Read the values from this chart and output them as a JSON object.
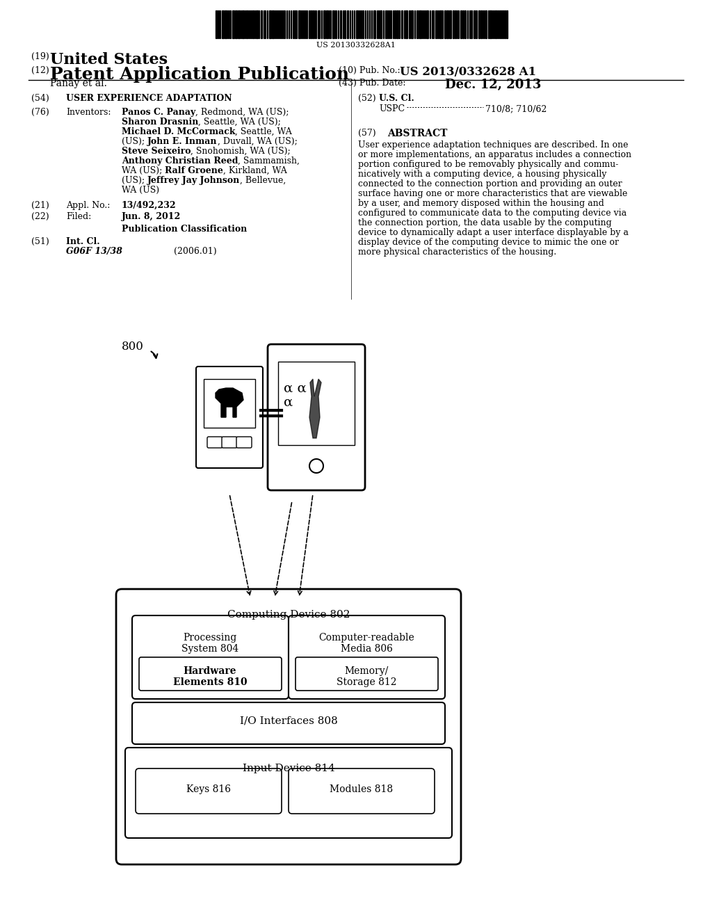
{
  "background_color": "#ffffff",
  "barcode_text": "US 20130332628A1",
  "title_19": "(19)",
  "title_19_text": "United States",
  "title_12": "(12)",
  "title_12_text": "Patent Application Publication",
  "pub_no_label": "(10) Pub. No.:",
  "pub_no_value": "US 2013/0332628 A1",
  "author": "Panay et al.",
  "pub_date_label": "(43) Pub. Date:",
  "pub_date_value": "Dec. 12, 2013",
  "section_54_num": "(54)",
  "section_54_text": "USER EXPERIENCE ADAPTATION",
  "section_76_num": "(76)",
  "section_76_label": "Inventors:",
  "inventors_text": "Panos C. Panay, Redmond, WA (US);\nSharon Drasnin, Seattle, WA (US);\nMichael D. McCormack, Seattle, WA\n(US); John E. Inman, Duvall, WA (US);\nSteve Seixeiro, Snohomish, WA (US);\nAnthony Christian Reed, Sammamish,\nWA (US); Ralf Groene, Kirkland, WA\n(US); Jeffrey Jay Johnson, Bellevue,\nWA (US)",
  "section_21_num": "(21)",
  "section_21_label": "Appl. No.:",
  "section_21_value": "13/492,232",
  "section_22_num": "(22)",
  "section_22_label": "Filed:",
  "section_22_value": "Jun. 8, 2012",
  "pub_class_header": "Publication Classification",
  "section_51_num": "(51)",
  "section_51_label": "Int. Cl.",
  "section_51_class": "G06F 13/38",
  "section_51_year": "(2006.01)",
  "section_52_num": "(52)",
  "section_52_label": "U.S. Cl.",
  "section_52_uspc": "USPC",
  "section_52_values": "710/8; 710/62",
  "section_57_num": "(57)",
  "section_57_label": "ABSTRACT",
  "abstract_text": "User experience adaptation techniques are described. In one\nor more implementations, an apparatus includes a connection\nportion configured to be removably physically and commu-\nnicatively with a computing device, a housing physically\nconnected to the connection portion and providing an outer\nsurface having one or more characteristics that are viewable\nby a user, and memory disposed within the housing and\nconfigured to communicate data to the computing device via\nthe connection portion, the data usable by the computing\ndevice to dynamically adapt a user interface displayable by a\ndisplay device of the computing device to mimic the one or\nmore physical characteristics of the housing.",
  "fig_label": "800",
  "computing_device_label": "Computing Device 802",
  "processing_system_label": "Processing\nSystem 804",
  "computer_readable_label": "Computer-readable\nMedia 806",
  "hardware_elements_label": "Hardware\nElements 810",
  "memory_storage_label": "Memory/\nStorage 812",
  "io_interfaces_label": "I/O Interfaces 808",
  "input_device_label": "Input Device 814",
  "keys_label": "Keys 816",
  "modules_label": "Modules 818"
}
